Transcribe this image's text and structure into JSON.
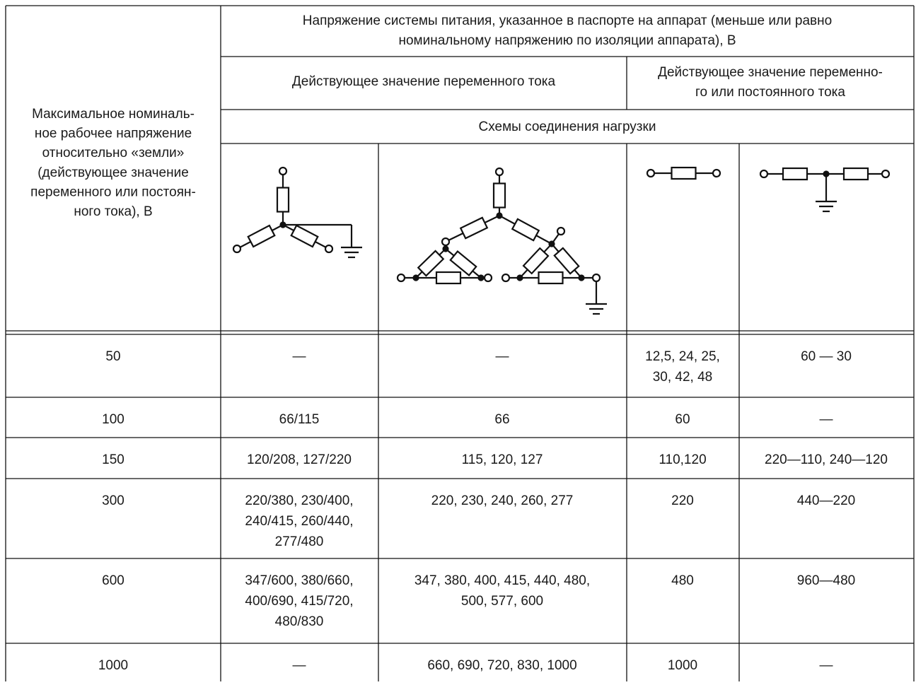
{
  "header": {
    "stub": [
      "Максимальное номиналь-",
      "ное рабочее напряжение",
      "относительно «земли»",
      "(действующее значение",
      "переменного или  постоян-",
      "ного тока),  В"
    ],
    "supply_voltage": [
      "Напряжение системы питания, указанное в паспорте на аппарат (меньше или равно",
      "номинальному напряжению по изоляции аппарата), В"
    ],
    "ac_rms": "Действующее значение переменного тока",
    "ac_or_dc_rms": [
      "Действующее значение переменно-",
      "го или постоянного тока"
    ],
    "load_schemes": "Схемы соединения нагрузки"
  },
  "rows": [
    {
      "voltage": "50",
      "cells": [
        [
          "—"
        ],
        [
          "—"
        ],
        [
          "12,5,  24, 25,",
          "30, 42, 48"
        ],
        [
          "60 — 30"
        ]
      ]
    },
    {
      "voltage": "100",
      "cells": [
        [
          "66/115"
        ],
        [
          "66"
        ],
        [
          "60"
        ],
        [
          "—"
        ]
      ]
    },
    {
      "voltage": "150",
      "cells": [
        [
          "120/208, 127/220"
        ],
        [
          "115, 120, 127"
        ],
        [
          "110,120"
        ],
        [
          "220—110, 240—120"
        ]
      ]
    },
    {
      "voltage": "300",
      "cells": [
        [
          "220/380, 230/400,",
          "240/415, 260/440,",
          "277/480"
        ],
        [
          "220, 230, 240, 260, 277"
        ],
        [
          "220"
        ],
        [
          "440—220"
        ]
      ]
    },
    {
      "voltage": "600",
      "cells": [
        [
          "347/600, 380/660,",
          "400/690, 415/720,",
          "480/830"
        ],
        [
          "347, 380, 400, 415, 440, 480,",
          "500, 577, 600"
        ],
        [
          "480"
        ],
        [
          "960—480"
        ]
      ]
    },
    {
      "voltage": "1000",
      "cells": [
        [
          "—"
        ],
        [
          "660, 690, 720, 830, 1000"
        ],
        [
          "1000"
        ],
        [
          "—"
        ]
      ]
    }
  ]
}
